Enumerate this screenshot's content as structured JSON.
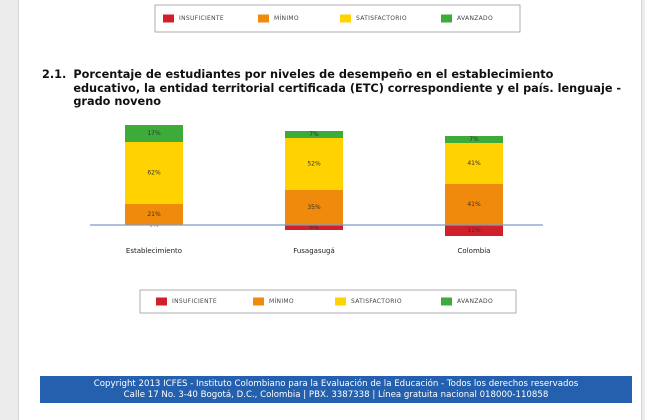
{
  "section_number": "2.1.",
  "chart_data": {
    "type": "bar",
    "stacked": true,
    "title": "Porcentaje de estudiantes por niveles de desempeño en el establecimiento educativo, la entidad territorial certificada (ETC) correspondiente y el país. lenguaje - grado noveno",
    "categories": [
      "Establecimiento",
      "Fusagasugá",
      "Colombia"
    ],
    "series": [
      {
        "name": "INSUFICIENTE",
        "color": "#d0202a",
        "values": [
          0,
          5,
          11
        ],
        "value_labels": [
          "0%",
          "5%",
          "11%"
        ]
      },
      {
        "name": "MÍNIMO",
        "color": "#f08a0c",
        "values": [
          21,
          35,
          41
        ],
        "value_labels": [
          "21%",
          "35%",
          "41%"
        ]
      },
      {
        "name": "SATISFACTORIO",
        "color": "#ffd200",
        "values": [
          62,
          52,
          41
        ],
        "value_labels": [
          "62%",
          "52%",
          "41%"
        ]
      },
      {
        "name": "AVANZADO",
        "color": "#3cab3a",
        "values": [
          17,
          7,
          7
        ],
        "value_labels": [
          "17%",
          "7%",
          "7%"
        ]
      }
    ]
  },
  "footer": [
    "Copyright 2013 ICFES - Instituto Colombiano para la Evaluación de la Educación - Todos los derechos reservados",
    "Calle 17 No. 3-40 Bogotá, D.C., Colombia | PBX. 3387338 | Línea gratuita nacional 018000-110858"
  ]
}
